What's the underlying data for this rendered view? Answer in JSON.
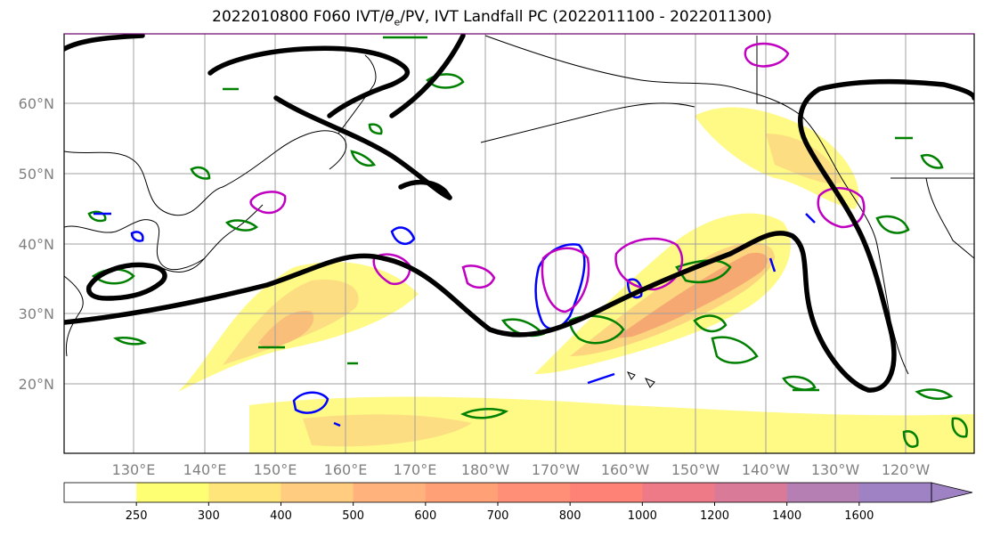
{
  "title": {
    "prefix": "2022010800 F060 IVT/",
    "theta": "θ",
    "theta_sub": "e",
    "suffix": "/PV, IVT Landfall PC (2022011100 - 2022011300)"
  },
  "map": {
    "region": "North Pacific",
    "lat_labels": [
      "60°N",
      "50°N",
      "40°N",
      "30°N",
      "20°N"
    ],
    "lon_labels": [
      "130°E",
      "140°E",
      "150°E",
      "160°E",
      "170°E",
      "180°W",
      "170°W",
      "160°W",
      "150°W",
      "140°W",
      "130°W",
      "120°W"
    ],
    "ivt_fill_colors": [
      "#fff870",
      "#fde580",
      "#fbcf7c",
      "#f8b878",
      "#f5a070"
    ],
    "contours": {
      "black": "thick 2-PVU / jet line",
      "green": "#008000",
      "blue": "#0000ff",
      "magenta": "#c000c0"
    }
  },
  "colorbar": {
    "labels": [
      "250",
      "300",
      "400",
      "500",
      "600",
      "700",
      "800",
      "1000",
      "1200",
      "1400",
      "1600"
    ],
    "colors": [
      "#ffffff",
      "#ffff73",
      "#ffe57a",
      "#ffcc80",
      "#ffb27c",
      "#ffa077",
      "#ff8f77",
      "#ff8277",
      "#ee7a88",
      "#d97a99",
      "#b57fb3",
      "#9f82c4"
    ]
  }
}
